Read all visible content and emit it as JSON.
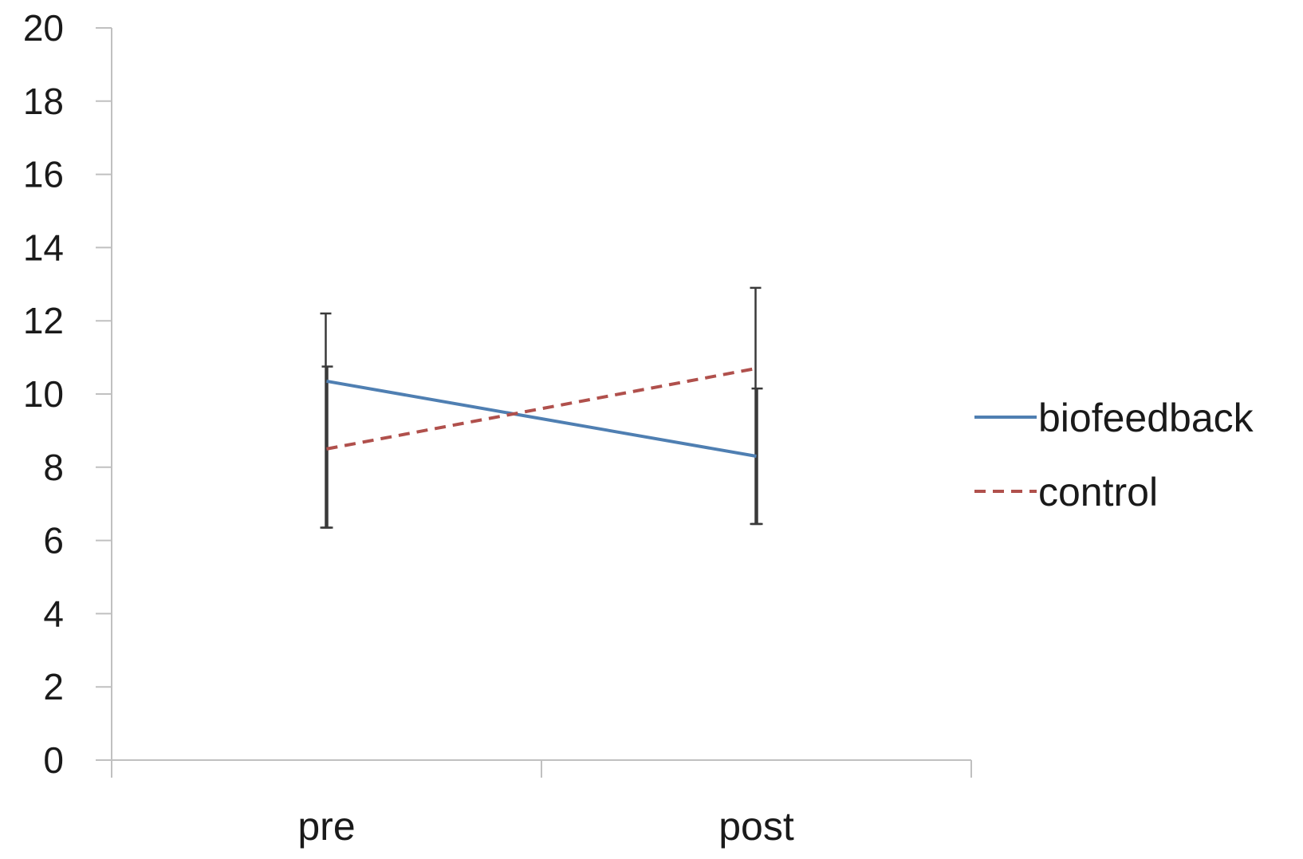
{
  "chart_data": {
    "type": "line",
    "categories": [
      "pre",
      "post"
    ],
    "ylim": [
      0,
      20
    ],
    "yticks": [
      "0",
      "2",
      "4",
      "6",
      "8",
      "10",
      "12",
      "14",
      "16",
      "18",
      "20"
    ],
    "series": [
      {
        "name": "biofeedback",
        "values": [
          10.35,
          8.3
        ],
        "error_low": [
          6.35,
          6.45
        ],
        "error_high": [
          12.2,
          12.9
        ],
        "color": "#4f7fb2",
        "style": "solid"
      },
      {
        "name": "control",
        "values": [
          8.5,
          10.7
        ],
        "error_low": [
          6.35,
          6.45
        ],
        "error_high": [
          10.75,
          10.15
        ],
        "color": "#b0504c",
        "style": "dashed"
      }
    ],
    "error_bar_color": "#3a3a3a",
    "axis_color": "#c0c0c0",
    "legend_position": "right",
    "grid": false
  }
}
